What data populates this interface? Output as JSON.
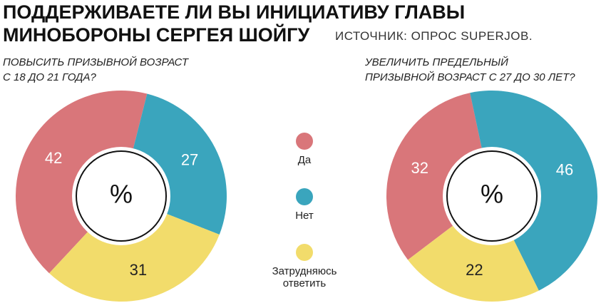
{
  "title": [
    "ПОДДЕРЖИВАЕТЕ ЛИ ВЫ ИНИЦИАТИВУ ГЛАВЫ",
    "МИНОБОРОНЫ СЕРГЕЯ ШОЙГУ"
  ],
  "source": "ИСТОЧНИК: ОПРОС SUPERJOB.",
  "chart_data": [
    {
      "type": "donut",
      "subtitle": [
        "ПОВЫСИТЬ ПРИЗЫВНОЙ ВОЗРАСТ",
        "С 18 ДО 21 ГОДА?"
      ],
      "categories": [
        "Да",
        "Нет",
        "Затрудняюсь ответить"
      ],
      "values": [
        42,
        27,
        31
      ],
      "colors": [
        "#d9767a",
        "#3aa5bd",
        "#f2dc6b"
      ],
      "center_label": "%"
    },
    {
      "type": "donut",
      "subtitle": [
        "УВЕЛИЧИТЬ ПРЕДЕЛЬНЫЙ",
        "ПРИЗЫВНОЙ ВОЗРАСТ С 27 ДО 30 ЛЕТ?"
      ],
      "categories": [
        "Да",
        "Нет",
        "Затрудняюсь ответить"
      ],
      "values": [
        32,
        46,
        22
      ],
      "colors": [
        "#d9767a",
        "#3aa5bd",
        "#f2dc6b"
      ],
      "center_label": "%"
    }
  ]
}
